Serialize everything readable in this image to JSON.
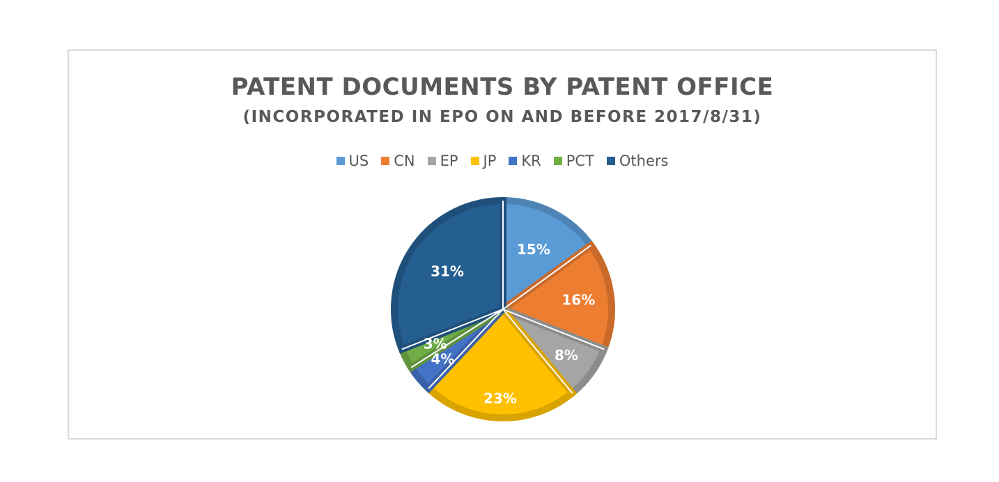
{
  "chart_data": {
    "type": "pie",
    "title": "PATENT DOCUMENTS BY PATENT OFFICE",
    "subtitle": "(INCORPORATED IN EPO ON AND BEFORE 2017/8/31)",
    "legend_position": "top",
    "slices": [
      {
        "name": "US",
        "value": 15,
        "label": "15%",
        "color": "#5b9bd5"
      },
      {
        "name": "CN",
        "value": 16,
        "label": "16%",
        "color": "#ed7d31"
      },
      {
        "name": "EP",
        "value": 8,
        "label": "8%",
        "color": "#a5a5a5"
      },
      {
        "name": "JP",
        "value": 23,
        "label": "23%",
        "color": "#ffc000"
      },
      {
        "name": "KR",
        "value": 4,
        "label": "4%",
        "color": "#4472c4"
      },
      {
        "name": "PCT",
        "value": 3,
        "label": "3%",
        "color": "#70ad47"
      },
      {
        "name": "Others",
        "value": 31,
        "label": "31%",
        "color": "#255e91"
      }
    ]
  }
}
